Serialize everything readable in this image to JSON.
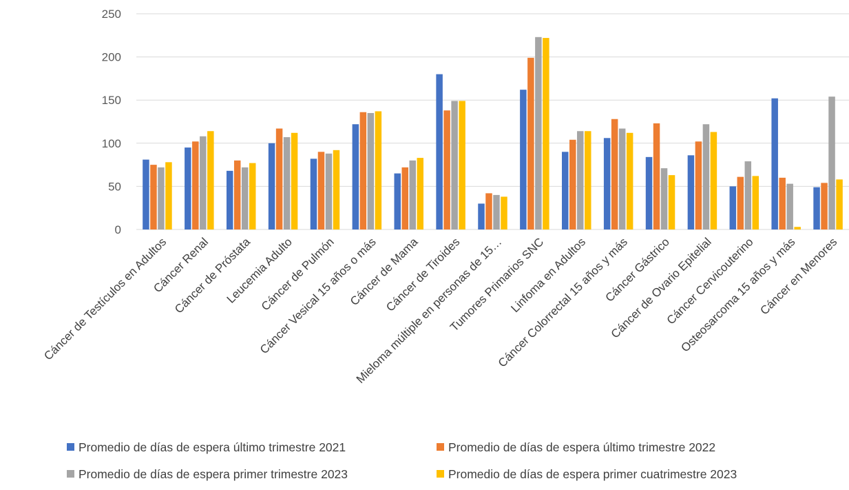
{
  "chart_data": {
    "type": "bar",
    "ylim": [
      0,
      250
    ],
    "yticks": [
      0,
      50,
      100,
      150,
      200,
      250
    ],
    "grid": true,
    "legend_position": "bottom",
    "categories": [
      "Cáncer de Testículos en Adultos",
      "Cáncer Renal",
      "Cáncer de Próstata",
      "Leucemia Adulto",
      "Cáncer de Pulmón",
      "Cáncer Vesical 15 años o más",
      "Cáncer de Mama",
      "Cáncer de Tiroides",
      "Mieloma múltiple en personas de 15…",
      "Tumores Primarios SNC",
      "Linfoma en Adultos",
      "Cáncer Colorrectal 15 años y más",
      "Cáncer Gástrico",
      "Cáncer de Ovario Epitelial",
      "Cáncer Cervicouterino",
      "Osteosarcoma 15 años y más",
      "Cáncer en Menores"
    ],
    "series": [
      {
        "name": "Promedio de días de espera último trimestre 2021",
        "color": "#4472C4",
        "values": [
          81,
          95,
          68,
          100,
          82,
          122,
          65,
          180,
          30,
          162,
          90,
          106,
          84,
          86,
          50,
          152,
          49
        ]
      },
      {
        "name": "Promedio de días de espera último trimestre 2022",
        "color": "#ED7D31",
        "values": [
          75,
          102,
          80,
          117,
          90,
          136,
          72,
          138,
          42,
          199,
          104,
          128,
          123,
          102,
          61,
          60,
          54
        ]
      },
      {
        "name": "Promedio de días de espera primer trimestre 2023",
        "color": "#A5A5A5",
        "values": [
          72,
          108,
          72,
          107,
          88,
          135,
          80,
          149,
          40,
          223,
          114,
          117,
          71,
          122,
          79,
          53,
          154
        ]
      },
      {
        "name": "Promedio de días de espera primer cuatrimestre 2023",
        "color": "#FFC000",
        "values": [
          78,
          114,
          77,
          112,
          92,
          137,
          83,
          149,
          38,
          222,
          114,
          112,
          63,
          113,
          62,
          3,
          58
        ]
      }
    ]
  }
}
